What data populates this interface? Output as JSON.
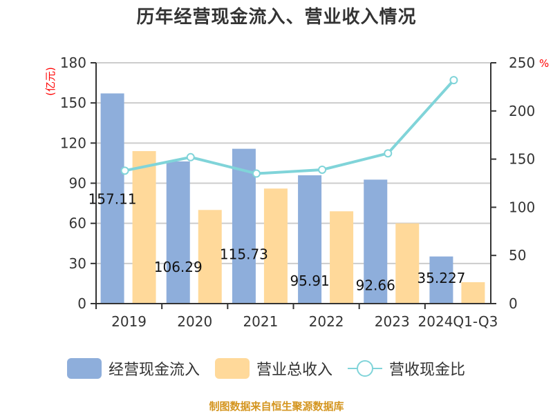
{
  "title": "历年经营现金流入、营业收入情况",
  "legend": {
    "items": [
      {
        "label": "经营现金流入",
        "color": "#8eaedb",
        "kind": "bar"
      },
      {
        "label": "营业总收入",
        "color": "#ffd99a",
        "kind": "bar"
      },
      {
        "label": "营收现金比",
        "color": "#80d4d9",
        "kind": "line"
      }
    ]
  },
  "footer": "制图数据来自恒生聚源数据库",
  "axes": {
    "left_unit": "(亿元)",
    "right_unit": "%",
    "left_ticks": [
      "0",
      "30",
      "60",
      "90",
      "120",
      "150",
      "180"
    ],
    "right_ticks": [
      "0",
      "50",
      "100",
      "150",
      "200",
      "250"
    ]
  },
  "chart_data": {
    "type": "bar",
    "title": "历年经营现金流入、营业收入情况",
    "categories": [
      "2019",
      "2020",
      "2021",
      "2022",
      "2023",
      "2024Q1-Q3"
    ],
    "series": [
      {
        "name": "经营现金流入",
        "type": "bar",
        "axis": "left",
        "color": "#8eaedb",
        "values": [
          157.11,
          106.29,
          115.73,
          95.91,
          92.66,
          35.227
        ]
      },
      {
        "name": "营业总收入",
        "type": "bar",
        "axis": "left",
        "color": "#ffd99a",
        "values": [
          114,
          70,
          86,
          69,
          60,
          16
        ]
      },
      {
        "name": "营收现金比",
        "type": "line",
        "axis": "right",
        "color": "#80d4d9",
        "values": [
          138,
          152,
          135,
          139,
          156,
          232
        ]
      }
    ],
    "data_labels": [
      "157.11",
      "106.29",
      "115.73",
      "95.91",
      "92.66",
      "35.227"
    ],
    "xlabel": "",
    "ylabel": "(亿元)",
    "ylabel_right": "%",
    "ylim": [
      0,
      180
    ],
    "ylim_right": [
      0,
      250
    ],
    "grid": true,
    "legend_position": "bottom"
  }
}
